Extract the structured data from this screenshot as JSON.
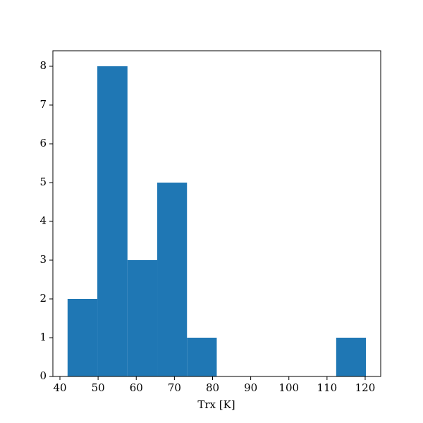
{
  "chart_data": {
    "type": "histogram",
    "xlabel": "Trx [K]",
    "bins": [
      42.0,
      49.8,
      57.7,
      65.5,
      73.3,
      81.1,
      88.9,
      96.8,
      104.6,
      112.4,
      120.2
    ],
    "counts": [
      2,
      8,
      3,
      5,
      1,
      0,
      0,
      0,
      0,
      1
    ],
    "color": "#1f77b4",
    "xlim": [
      38.15,
      124.07
    ],
    "ylim": [
      0,
      8.4
    ],
    "xticks": [
      40,
      50,
      60,
      70,
      80,
      90,
      100,
      110,
      120
    ],
    "yticks": [
      0,
      1,
      2,
      3,
      4,
      5,
      6,
      7,
      8
    ]
  }
}
